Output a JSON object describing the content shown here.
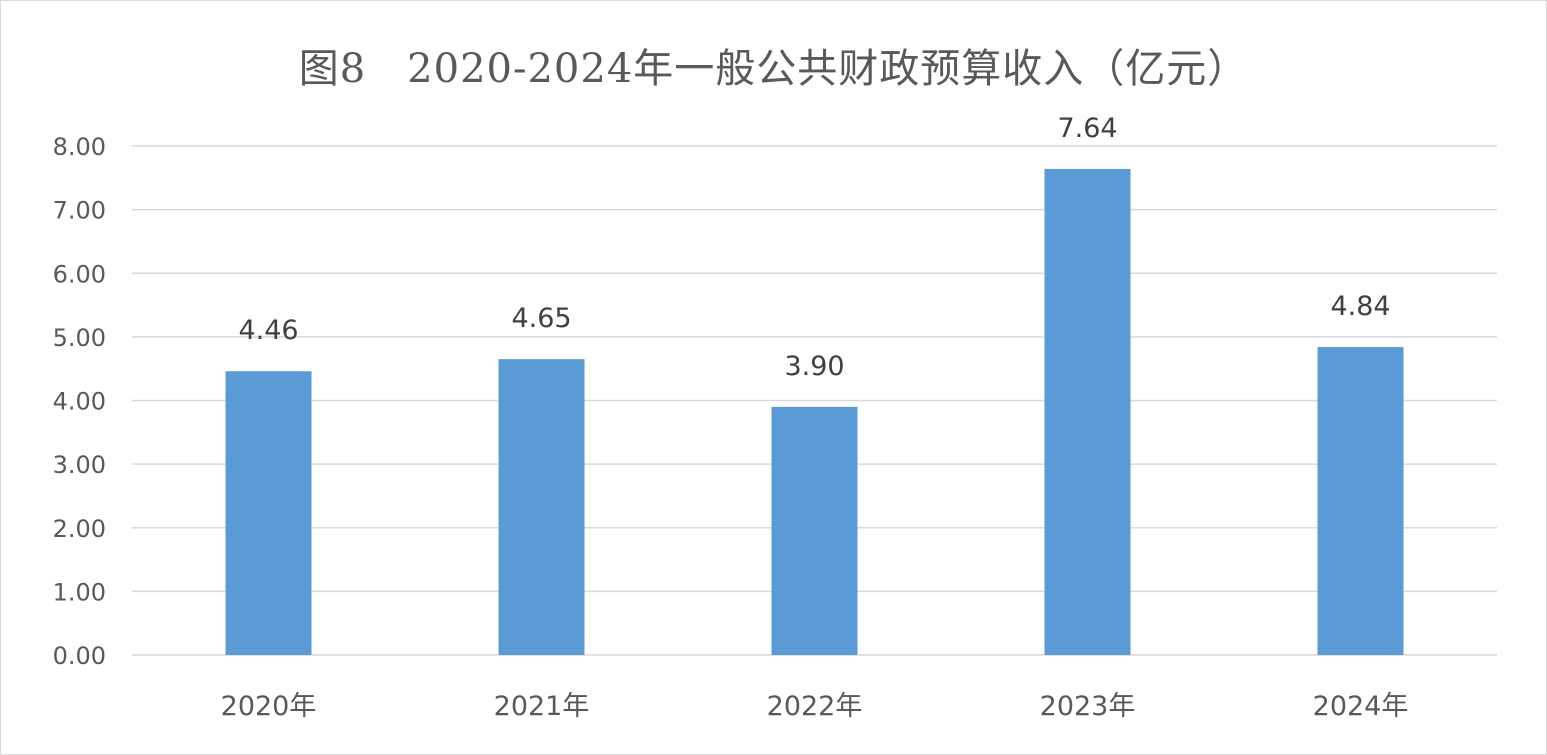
{
  "chart_data": {
    "type": "bar",
    "title": "图8　2020-2024年一般公共财政预算收入（亿元）",
    "categories": [
      "2020年",
      "2021年",
      "2022年",
      "2023年",
      "2024年"
    ],
    "values": [
      4.46,
      4.65,
      3.9,
      7.64,
      4.84
    ],
    "data_labels": [
      "4.46",
      "4.65",
      "3.90",
      "7.64",
      "4.84"
    ],
    "y_ticks": [
      "0.00",
      "1.00",
      "2.00",
      "3.00",
      "4.00",
      "5.00",
      "6.00",
      "7.00",
      "8.00"
    ],
    "ylim": [
      0,
      8
    ],
    "grid": true,
    "legend": "none",
    "bar_color": "#5b9bd5",
    "grid_color": "#d9d9d9"
  }
}
